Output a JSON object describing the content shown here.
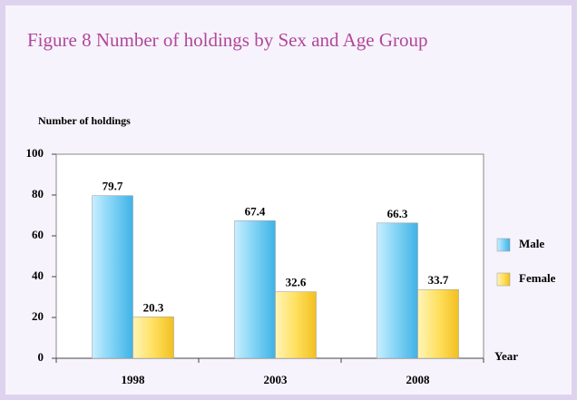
{
  "chart_data": {
    "type": "bar",
    "title": "Figure  8   Number of holdings by Sex and Age Group",
    "y_label": "Number of holdings",
    "x_label": "Year",
    "categories": [
      "1998",
      "2003",
      "2008"
    ],
    "series": [
      {
        "name": "Male",
        "color": "#7fd2f5",
        "values": [
          79.7,
          67.4,
          66.3
        ]
      },
      {
        "name": "Female",
        "color": "#ffe060",
        "values": [
          20.3,
          32.6,
          33.7
        ]
      }
    ],
    "ylim": [
      0,
      100
    ],
    "yticks": [
      0,
      20,
      40,
      60,
      80,
      100
    ],
    "legend": "right",
    "grid": false
  }
}
